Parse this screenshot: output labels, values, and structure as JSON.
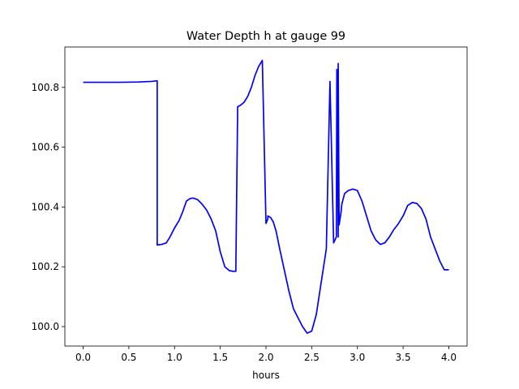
{
  "chart_data": {
    "type": "line",
    "title": "Water Depth h at gauge 99",
    "xlabel": "hours",
    "ylabel": "",
    "xlim": [
      -0.2,
      4.2
    ],
    "ylim": [
      99.935,
      100.935
    ],
    "xticks": [
      0.0,
      0.5,
      1.0,
      1.5,
      2.0,
      2.5,
      3.0,
      3.5,
      4.0
    ],
    "xtick_labels": [
      "0.0",
      "0.5",
      "1.0",
      "1.5",
      "2.0",
      "2.5",
      "3.0",
      "3.5",
      "4.0"
    ],
    "yticks": [
      100.0,
      100.2,
      100.4,
      100.6,
      100.8
    ],
    "ytick_labels": [
      "100.0",
      "100.2",
      "100.4",
      "100.6",
      "100.8"
    ],
    "grid": false,
    "series": [
      {
        "color": "#0000ff",
        "x": [
          0.0,
          0.2,
          0.4,
          0.6,
          0.75,
          0.81,
          0.81,
          0.86,
          0.91,
          0.95,
          1.0,
          1.05,
          1.09,
          1.13,
          1.17,
          1.2,
          1.25,
          1.3,
          1.35,
          1.4,
          1.45,
          1.5,
          1.55,
          1.6,
          1.64,
          1.67,
          1.69,
          1.69,
          1.72,
          1.76,
          1.8,
          1.84,
          1.88,
          1.92,
          1.96,
          2.0,
          2.02,
          2.02,
          2.05,
          2.08,
          2.11,
          2.15,
          2.2,
          2.25,
          2.3,
          2.35,
          2.4,
          2.45,
          2.5,
          2.55,
          2.58,
          2.62,
          2.66,
          2.7,
          2.74,
          2.77,
          2.775,
          2.79,
          2.79,
          2.8,
          2.81,
          2.815,
          2.82,
          2.83,
          2.86,
          2.9,
          2.95,
          3.0,
          3.05,
          3.1,
          3.15,
          3.2,
          3.25,
          3.3,
          3.35,
          3.4,
          3.45,
          3.5,
          3.55,
          3.6,
          3.65,
          3.7,
          3.75,
          3.8,
          3.85,
          3.9,
          3.95,
          4.0
        ],
        "y": [
          100.817,
          100.817,
          100.817,
          100.818,
          100.82,
          100.822,
          100.273,
          100.275,
          100.28,
          100.3,
          100.33,
          100.355,
          100.385,
          100.42,
          100.428,
          100.43,
          100.425,
          100.41,
          100.39,
          100.36,
          100.32,
          100.25,
          100.2,
          100.187,
          100.185,
          100.185,
          100.73,
          100.735,
          100.74,
          100.75,
          100.77,
          100.8,
          100.84,
          100.87,
          100.89,
          100.345,
          100.36,
          100.37,
          100.365,
          100.35,
          100.32,
          100.26,
          100.19,
          100.12,
          100.06,
          100.03,
          100.0,
          99.978,
          99.985,
          100.04,
          100.1,
          100.18,
          100.26,
          100.82,
          100.28,
          100.3,
          100.86,
          100.3,
          100.88,
          100.34,
          100.36,
          100.37,
          100.38,
          100.41,
          100.445,
          100.455,
          100.46,
          100.455,
          100.42,
          100.37,
          100.32,
          100.29,
          100.275,
          100.28,
          100.3,
          100.325,
          100.345,
          100.37,
          100.405,
          100.415,
          100.412,
          100.395,
          100.36,
          100.3,
          100.26,
          100.22,
          100.19,
          100.19
        ]
      }
    ]
  }
}
